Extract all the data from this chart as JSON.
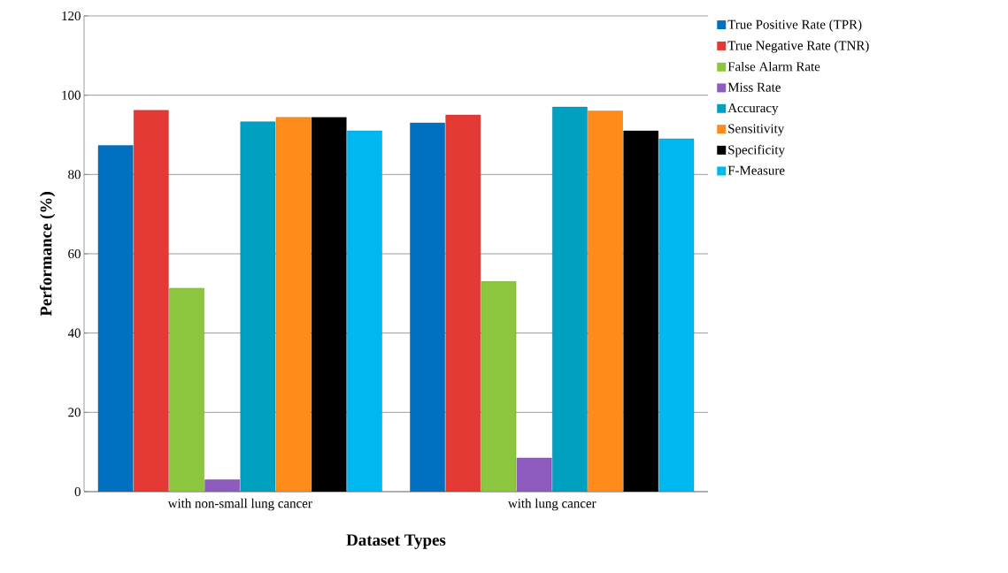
{
  "chart_data": {
    "type": "bar",
    "xlabel": "Dataset Types",
    "ylabel": "Performance  (%)",
    "categories": [
      "with non-small lung cancer",
      "with lung cancer"
    ],
    "series": [
      {
        "name": "True Positive Rate (TPR)",
        "color": "#0070c0",
        "values": [
          87.3,
          93
        ]
      },
      {
        "name": "True Negative Rate (TNR)",
        "color": "#e53935",
        "values": [
          96.2,
          95
        ]
      },
      {
        "name": "False Alarm Rate",
        "color": "#8cc63f",
        "values": [
          51.3,
          53
        ]
      },
      {
        "name": "Miss Rate",
        "color": "#8e5bbf",
        "values": [
          3,
          8.5
        ]
      },
      {
        "name": "Accuracy",
        "color": "#00a0c0",
        "values": [
          93.3,
          97
        ]
      },
      {
        "name": "Sensitivity",
        "color": "#ff8c1a",
        "values": [
          94.4,
          96
        ]
      },
      {
        "name": "Specificity",
        "color": "#000000",
        "values": [
          94.4,
          91
        ]
      },
      {
        "name": "F-Measure",
        "color": "#00b8f0",
        "values": [
          91,
          89
        ]
      }
    ],
    "ylim": [
      0,
      120
    ],
    "yticks": [
      0,
      20,
      40,
      60,
      80,
      100,
      120
    ],
    "grid": "y",
    "legend": "right"
  }
}
